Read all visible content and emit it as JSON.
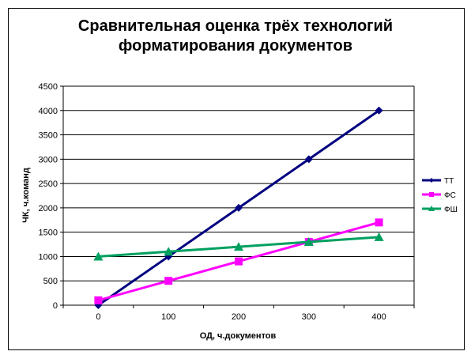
{
  "chart_data": {
    "type": "line",
    "title_line1": "Сравнительная оценка трёх технологий",
    "title_line2": "форматирования документов",
    "xlabel": "ОД, ч.документов",
    "ylabel": "ЧК, ч.команд",
    "x": [
      0,
      100,
      200,
      300,
      400
    ],
    "x_ticks": [
      "0",
      "100",
      "200",
      "300",
      "400"
    ],
    "ylim": [
      0,
      4500
    ],
    "y_ticks": [
      0,
      500,
      1000,
      1500,
      2000,
      2500,
      3000,
      3500,
      4000,
      4500
    ],
    "grid": "horizontal",
    "legend_position": "right",
    "series": [
      {
        "name": "ТТ",
        "values": [
          0,
          1000,
          2000,
          3000,
          4000
        ],
        "color": "#000080",
        "marker": "diamond"
      },
      {
        "name": "ФС",
        "values": [
          100,
          500,
          900,
          1300,
          1700
        ],
        "color": "#ff00ff",
        "marker": "square"
      },
      {
        "name": "ФШ",
        "values": [
          1000,
          1100,
          1200,
          1300,
          1400
        ],
        "color": "#00a060",
        "marker": "triangle"
      }
    ]
  }
}
